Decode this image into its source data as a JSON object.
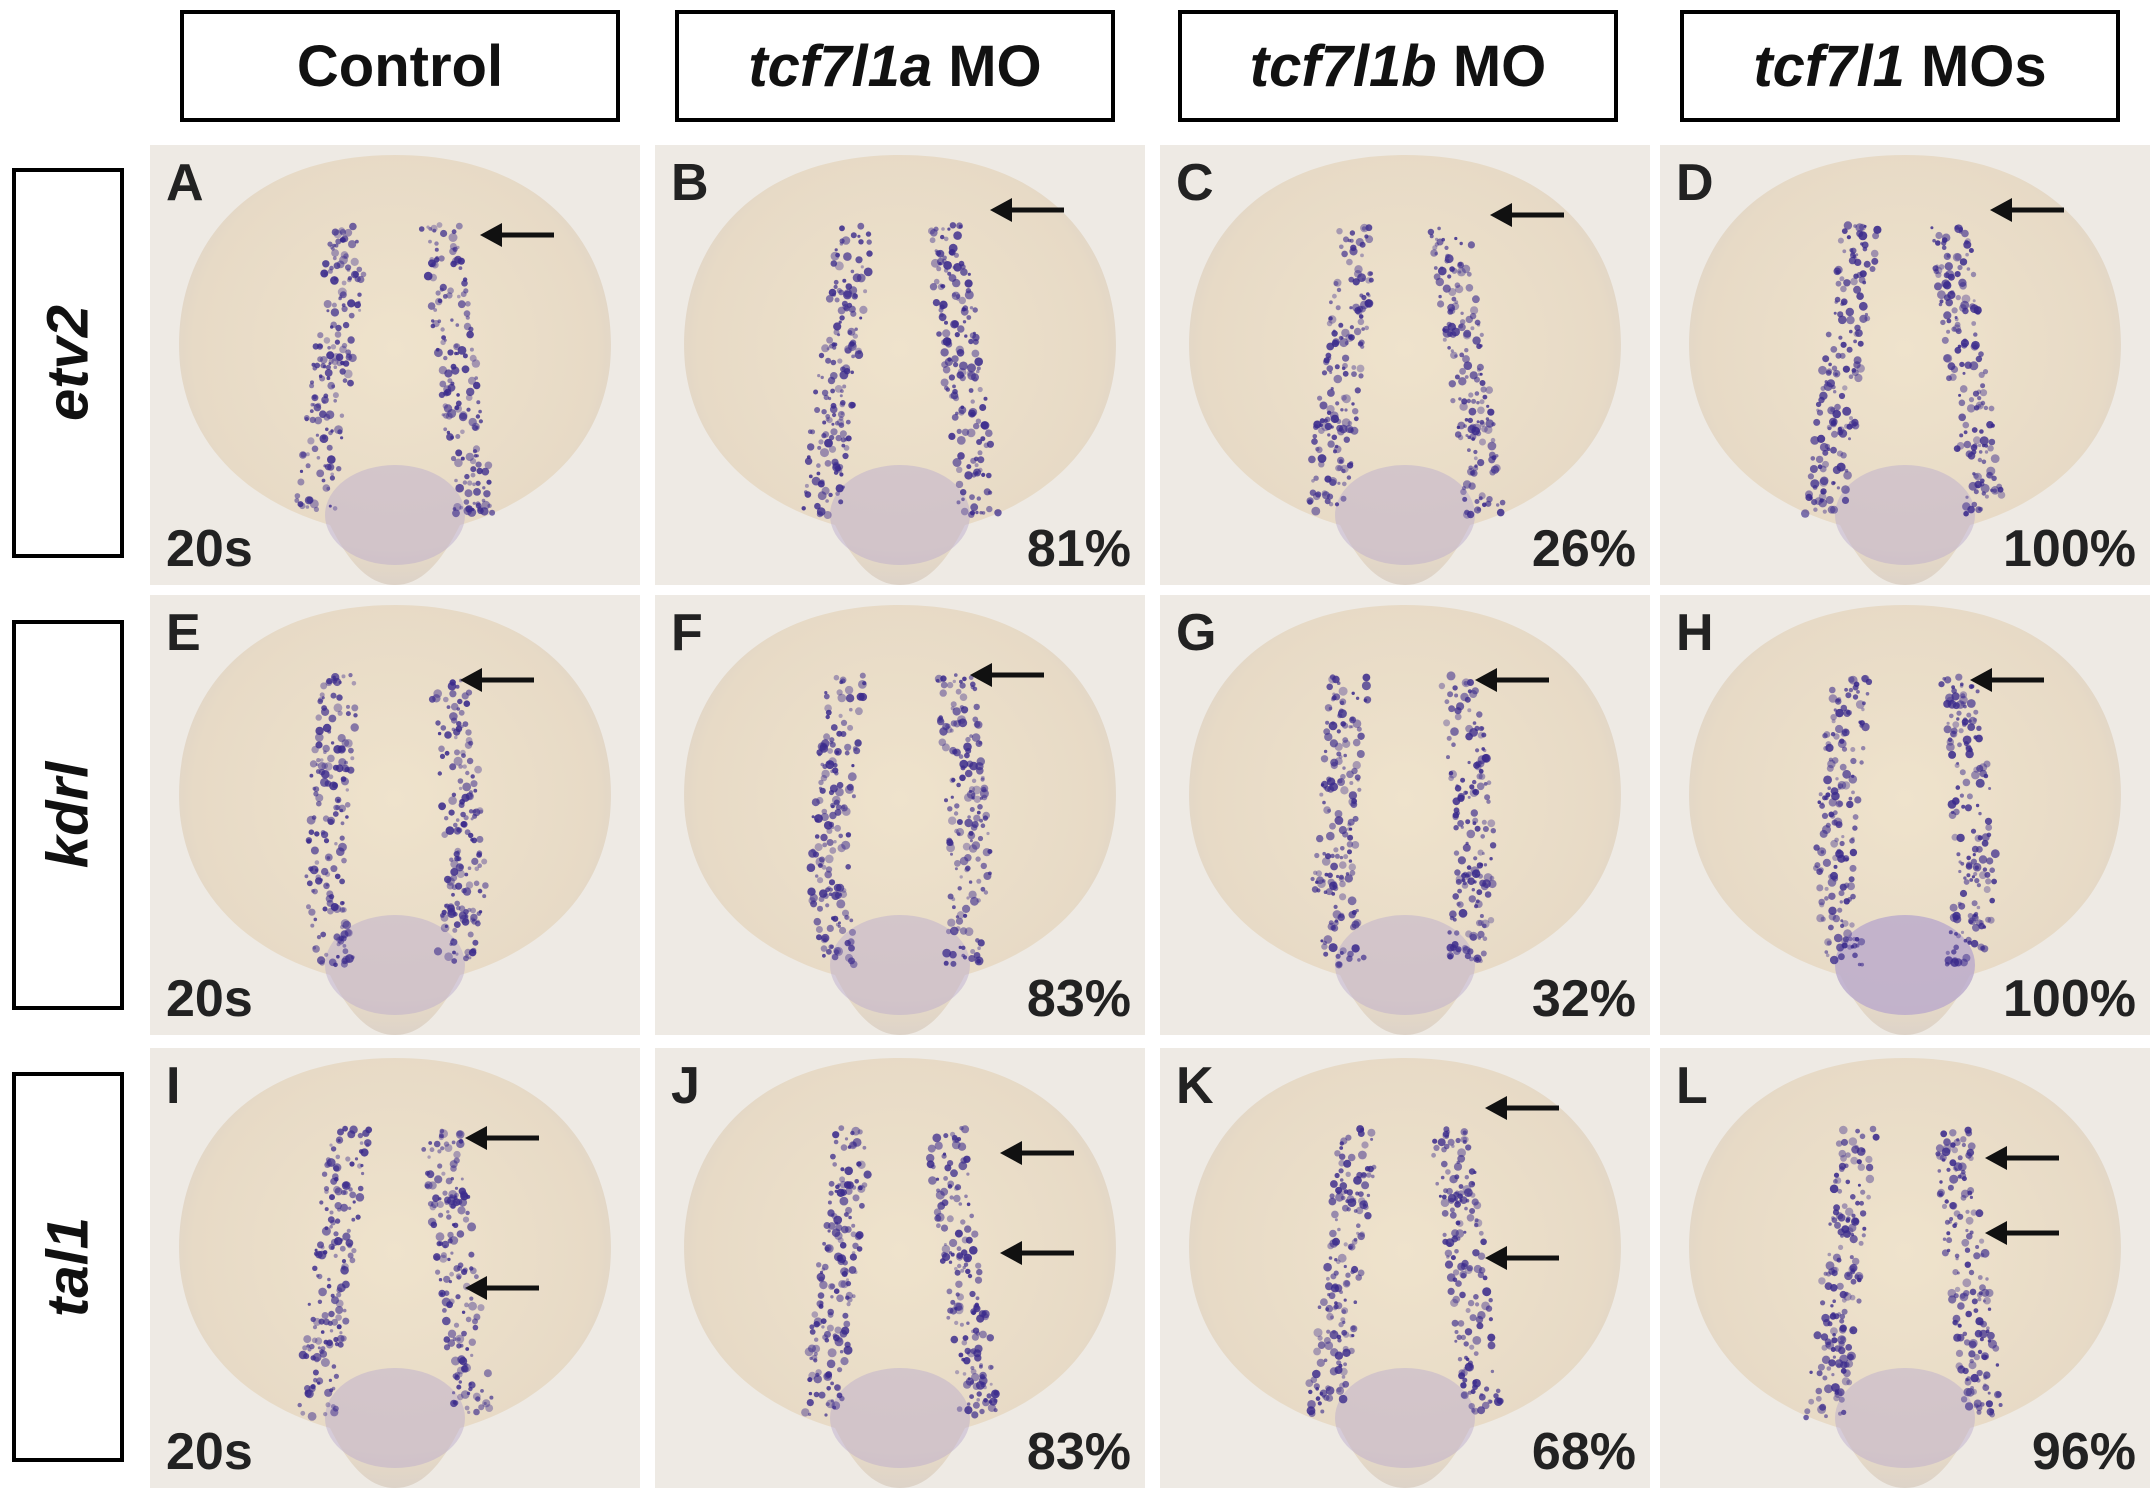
{
  "columns": [
    {
      "gene": "",
      "suffix": "Control"
    },
    {
      "gene": "tcf7l1a",
      "suffix": " MO"
    },
    {
      "gene": "tcf7l1b",
      "suffix": " MO"
    },
    {
      "gene": "tcf7l1",
      "suffix": " MOs"
    }
  ],
  "rows": [
    "etv2",
    "kdrl",
    "tal1"
  ],
  "stage_label": "20s",
  "panels": [
    {
      "letter": "A",
      "pct": ""
    },
    {
      "letter": "B",
      "pct": "81%"
    },
    {
      "letter": "C",
      "pct": "26%"
    },
    {
      "letter": "D",
      "pct": "100%"
    },
    {
      "letter": "E",
      "pct": ""
    },
    {
      "letter": "F",
      "pct": "83%"
    },
    {
      "letter": "G",
      "pct": "32%"
    },
    {
      "letter": "H",
      "pct": "100%"
    },
    {
      "letter": "I",
      "pct": ""
    },
    {
      "letter": "J",
      "pct": "83%"
    },
    {
      "letter": "K",
      "pct": "68%"
    },
    {
      "letter": "L",
      "pct": "96%"
    }
  ],
  "colors": {
    "embryo": "#ece0c9",
    "stain": "#3a2a8c",
    "background": "#eeeae4"
  }
}
